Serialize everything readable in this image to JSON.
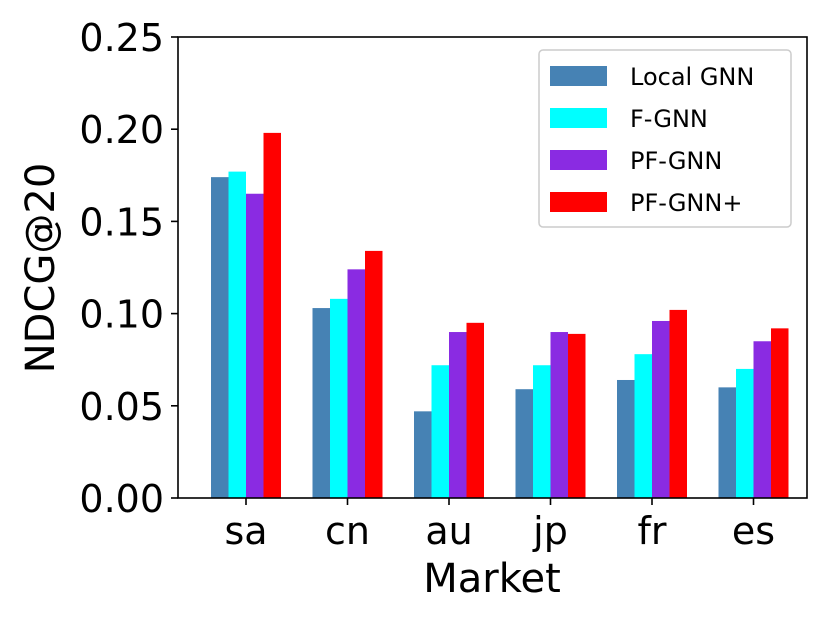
{
  "chart_data": {
    "type": "bar",
    "categories": [
      "sa",
      "cn",
      "au",
      "jp",
      "fr",
      "es"
    ],
    "series": [
      {
        "name": "Local GNN",
        "color": "#4682b4",
        "values": [
          0.174,
          0.103,
          0.047,
          0.059,
          0.064,
          0.06
        ]
      },
      {
        "name": "F-GNN",
        "color": "#00ffff",
        "values": [
          0.177,
          0.108,
          0.072,
          0.072,
          0.078,
          0.07
        ]
      },
      {
        "name": "PF-GNN",
        "color": "#8a2be2",
        "values": [
          0.165,
          0.124,
          0.09,
          0.09,
          0.096,
          0.085
        ]
      },
      {
        "name": "PF-GNN+",
        "color": "#ff0000",
        "values": [
          0.198,
          0.134,
          0.095,
          0.089,
          0.102,
          0.092
        ]
      }
    ],
    "xlabel": "Market",
    "ylabel": "NDCG@20",
    "ylim": [
      0,
      0.25
    ],
    "yticks": [
      "0.00",
      "0.05",
      "0.10",
      "0.15",
      "0.20",
      "0.25"
    ],
    "legend_position": "top-right",
    "grid": false
  }
}
